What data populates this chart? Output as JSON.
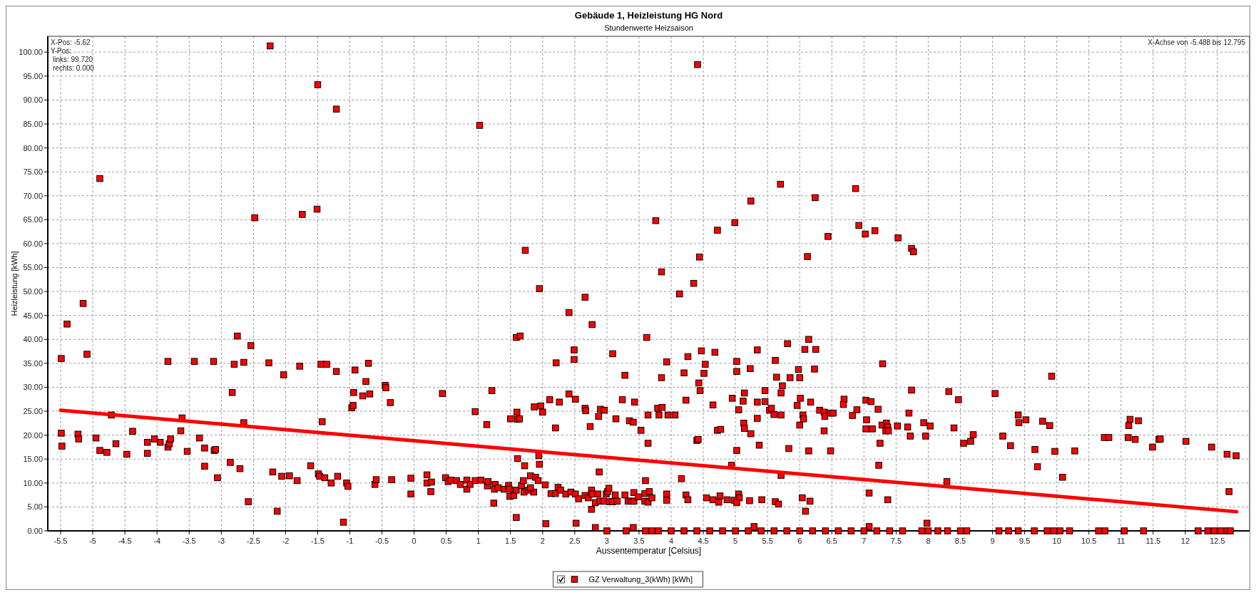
{
  "chart_data": {
    "type": "scatter",
    "title": "Gebäude 1, Heizleistung HG Nord",
    "subtitle": "Stundenwerte Heizsaison",
    "xlabel": "Aussentemperatur [Celsius]",
    "ylabel": "Heizleistung [kWh]",
    "annotations": [
      "X-Pos:  -5.62",
      "Y-Pos:",
      "links: 99.720",
      "rechts: 0.000",
      "X-Achse von -5.488 bis 12.795"
    ],
    "xlim": [
      -5.7,
      13.0
    ],
    "ylim": [
      0,
      103.3
    ],
    "xticks": [
      -5.5,
      -5,
      -4.5,
      -4,
      -3.5,
      -3,
      -2.5,
      -2,
      -1.5,
      -1,
      -0.5,
      0,
      0.5,
      1,
      1.5,
      2,
      2.5,
      3,
      3.5,
      4,
      4.5,
      5,
      5.5,
      6,
      6.5,
      7,
      7.5,
      8,
      8.5,
      9,
      9.5,
      10,
      10.5,
      11,
      11.5,
      12,
      12.5
    ],
    "yticks": [
      {
        "value": 0,
        "label": "0.00"
      },
      {
        "value": 5,
        "label": "5.00"
      },
      {
        "value": 10,
        "label": "10.00"
      },
      {
        "value": 15,
        "label": "15.00"
      },
      {
        "value": 20,
        "label": "20.00"
      },
      {
        "value": 25,
        "label": "25.00"
      },
      {
        "value": 30,
        "label": "30.00"
      },
      {
        "value": 35,
        "label": "35.00"
      },
      {
        "value": 40,
        "label": "40.00"
      },
      {
        "value": 45,
        "label": "45.00"
      },
      {
        "value": 50,
        "label": "50.00"
      },
      {
        "value": 55,
        "label": "55.00"
      },
      {
        "value": 60,
        "label": "60.00"
      },
      {
        "value": 65,
        "label": "65.00"
      },
      {
        "value": 70,
        "label": "70.00"
      },
      {
        "value": 75,
        "label": "75.00"
      },
      {
        "value": 80,
        "label": "80.00"
      },
      {
        "value": 85,
        "label": "85.00"
      },
      {
        "value": 90,
        "label": "90.00"
      },
      {
        "value": 95,
        "label": "95.00"
      },
      {
        "value": 100,
        "label": "100.00"
      }
    ],
    "grid": true,
    "legend": "bottom",
    "series": [
      {
        "name": "GZ Verwaltung_3(kWh) [kWh]",
        "color": "#ff0000",
        "marker": "square",
        "x": [
          -5.4,
          -5.15,
          -5.49,
          -5.09,
          -3.83,
          -3.42,
          -3.12,
          -2.75,
          -2.54,
          -2.8,
          -2.65,
          -2.83,
          -2.26,
          -2.03,
          -1.78,
          -1.45,
          -1.36,
          -1.21,
          -0.92,
          -0.71,
          -0.75,
          -0.94,
          -0.8,
          -0.69,
          -0.45,
          -0.44,
          -0.37,
          -0.97,
          -0.95,
          -1.43,
          -2.65,
          -3.61,
          -4.71,
          -5.49,
          -5.48,
          -5.23,
          -5.22,
          -4.95,
          -4.89,
          -4.78,
          -4.64,
          -4.47,
          -4.38,
          -4.15,
          -4.15,
          -4.04,
          -3.95,
          -3.83,
          -3.81,
          -3.79,
          -3.63,
          -3.53,
          -3.34,
          -3.26,
          -3.26,
          -3.11,
          -3.09,
          -3.06,
          -2.86,
          -2.71,
          -2.58,
          -2.2,
          -2.13,
          -2.06,
          -1.94,
          -1.82,
          -1.61,
          -1.49,
          -1.47,
          -1.39,
          -1.29,
          -1.19,
          -1.1,
          -1.05,
          -1.03,
          -0.61,
          -0.59,
          -0.35,
          -0.05,
          -0.05,
          -2.24,
          -1.5,
          -1.21,
          -4.89,
          -2.48,
          -1.74,
          -1.51,
          4.41,
          1.02,
          5.7,
          6.24,
          5.24,
          3.76,
          4.99,
          4.72,
          6.44,
          1.73,
          6.12,
          4.44,
          3.85,
          4.35,
          1.95,
          4.13,
          2.66,
          2.41,
          6.87,
          6.92,
          7.02,
          7.17,
          7.53,
          7.74,
          7.77,
          2.77,
          1.59,
          1.65,
          3.62,
          6.14,
          5.81,
          2.49,
          3.09,
          4.47,
          4.68,
          5.34,
          6.08,
          6.25,
          2.21,
          2.49,
          3.93,
          4.26,
          4.53,
          5.02,
          5.02,
          5.62,
          5.23,
          6.23,
          5.98,
          3.28,
          4.2,
          3.85,
          4.51,
          5.64,
          5.85,
          6.0,
          4.43,
          4.45,
          5.73,
          5.71,
          0.44,
          1.21,
          2.41,
          2.51,
          2.11,
          2.26,
          3.24,
          3.43,
          4.23,
          4.65,
          4.95,
          5.14,
          5.12,
          5.34,
          5.46,
          5.46,
          6.01,
          5.96,
          6.17,
          0.95,
          1.6,
          1.87,
          1.97,
          2.0,
          2.66,
          2.67,
          2.9,
          2.96,
          2.87,
          3.14,
          3.35,
          3.41,
          3.79,
          3.86,
          3.64,
          3.81,
          3.95,
          4.06,
          5.05,
          5.53,
          5.56,
          5.6,
          5.71,
          6.05,
          6.06,
          6.31,
          6.38,
          6.39,
          6.48,
          5.34,
          6.0,
          5.13,
          5.14,
          5.24,
          6.38,
          4.72,
          4.77,
          1.13,
          1.5,
          1.61,
          1.64,
          2.2,
          2.74,
          3.53,
          4.4,
          4.42,
          3.64,
          5.37,
          5.02,
          5.83,
          6.14,
          6.48,
          1.61,
          1.72,
          1.94,
          1.95,
          2.88,
          4.94,
          5.71,
          3.6,
          4.16,
          0.2,
          0.2,
          0.27,
          0.26,
          0.49,
          0.53,
          0.57,
          0.66,
          0.72,
          0.82,
          0.82,
          0.87,
          0.95,
          1.04,
          1.14,
          1.15,
          1.24,
          1.26,
          1.25,
          1.31,
          1.4,
          1.47,
          1.49,
          1.55,
          1.48,
          1.59,
          1.59,
          1.67,
          1.7,
          1.71,
          1.78,
          1.81,
          1.86,
          1.81,
          1.89,
          1.93,
          2.04,
          2.05,
          2.13,
          2.2,
          2.24,
          2.28,
          2.36,
          2.44,
          2.51,
          2.52,
          2.56,
          2.66,
          2.71,
          2.76,
          2.77,
          2.76,
          2.82,
          2.86,
          2.82,
          2.89,
          2.95,
          2.99,
          3.01,
          3.03,
          3.04,
          3.09,
          3.13,
          3.16,
          3.28,
          3.33,
          3.38,
          3.42,
          3.42,
          3.41,
          3.49,
          3.59,
          3.59,
          3.64,
          3.66,
          3.7,
          3.93,
          3.93,
          4.23,
          4.26,
          4.55,
          4.65,
          4.76,
          4.74,
          4.87,
          4.98,
          5.05,
          5.06,
          5.02,
          5.22,
          5.29,
          5.41,
          5.62,
          5.67,
          6.04,
          6.16,
          6.09,
          7.29,
          9.92,
          7.74,
          8.32,
          9.04,
          8.47,
          6.69,
          6.68,
          7.03,
          7.11,
          7.22,
          6.89,
          6.52,
          6.82,
          7.7,
          7.04,
          7.03,
          7.13,
          7.28,
          7.35,
          7.37,
          7.34,
          7.38,
          7.52,
          7.25,
          7.23,
          7.08,
          7.37,
          7.68,
          7.72,
          7.93,
          8.03,
          7.96,
          7.98,
          8.29,
          8.4,
          8.55,
          8.66,
          8.7,
          9.16,
          9.28,
          9.4,
          9.41,
          9.52,
          9.66,
          9.7,
          9.78,
          9.89,
          9.97,
          10.09,
          10.28,
          10.74,
          10.81,
          11.12,
          11.14,
          11.27,
          11.11,
          11.22,
          11.49,
          11.59,
          11.61,
          12.01,
          12.41,
          12.65,
          12.79,
          12.68,
          7.08,
          3.0,
          3.3,
          3.6,
          3.7,
          3.8,
          4.0,
          4.2,
          4.4,
          4.6,
          4.8,
          5.0,
          5.2,
          5.4,
          5.6,
          5.8,
          6.0,
          6.2,
          6.4,
          6.6,
          6.8,
          7.0,
          7.2,
          7.4,
          7.6,
          7.9,
          8.0,
          8.15,
          8.3,
          8.5,
          8.6,
          9.1,
          9.25,
          9.4,
          9.65,
          9.85,
          9.95,
          10.05,
          10.2,
          10.65,
          10.75,
          11.05,
          11.35,
          12.2,
          12.35,
          12.45,
          12.55,
          12.65,
          12.7
        ],
        "values": [
          43.2,
          47.5,
          36.0,
          36.9,
          35.4,
          35.4,
          35.4,
          40.7,
          38.7,
          34.8,
          35.2,
          28.9,
          35.1,
          32.6,
          34.4,
          34.8,
          34.8,
          33.3,
          33.6,
          35.0,
          31.2,
          28.9,
          28.2,
          28.6,
          30.4,
          29.9,
          26.8,
          25.7,
          26.2,
          22.8,
          22.6,
          23.6,
          24.2,
          20.4,
          17.7,
          20.2,
          19.2,
          19.4,
          16.8,
          16.4,
          18.2,
          16.0,
          20.8,
          18.5,
          16.2,
          19.2,
          18.5,
          17.5,
          18.2,
          19.2,
          20.9,
          16.6,
          19.4,
          17.3,
          13.5,
          16.8,
          17.0,
          11.1,
          14.3,
          13.0,
          6.1,
          12.3,
          4.1,
          11.4,
          11.5,
          10.5,
          13.6,
          11.9,
          11.4,
          11.1,
          10.0,
          11.4,
          1.8,
          10.0,
          9.3,
          9.7,
          10.7,
          10.7,
          11.0,
          7.7,
          101.3,
          93.2,
          88.1,
          73.6,
          65.4,
          66.1,
          67.2,
          97.4,
          84.7,
          72.4,
          69.6,
          68.9,
          64.8,
          64.4,
          62.8,
          61.5,
          58.6,
          57.3,
          57.2,
          54.1,
          51.7,
          50.6,
          49.5,
          48.8,
          45.6,
          71.5,
          63.8,
          62.0,
          62.7,
          61.2,
          59.0,
          58.3,
          43.1,
          40.4,
          40.7,
          40.4,
          40.0,
          39.1,
          37.8,
          37.0,
          37.6,
          37.3,
          37.8,
          37.9,
          37.9,
          35.1,
          35.8,
          35.3,
          36.4,
          34.8,
          35.4,
          33.3,
          35.6,
          33.9,
          33.8,
          33.7,
          32.5,
          33.0,
          32.0,
          32.9,
          32.1,
          32.0,
          32.0,
          30.9,
          29.3,
          30.3,
          28.8,
          28.7,
          29.3,
          28.6,
          27.5,
          27.4,
          26.9,
          27.4,
          26.9,
          27.3,
          26.3,
          27.7,
          28.8,
          27.1,
          26.9,
          29.3,
          27.0,
          27.7,
          26.2,
          26.9,
          24.9,
          24.8,
          25.9,
          26.1,
          24.8,
          25.6,
          25.1,
          25.4,
          25.2,
          23.9,
          23.4,
          23.0,
          22.7,
          25.6,
          25.8,
          24.2,
          24.2,
          24.2,
          24.2,
          25.3,
          25.2,
          25.6,
          24.3,
          24.2,
          24.2,
          23.4,
          25.2,
          24.8,
          23.9,
          24.6,
          23.5,
          22.1,
          22.5,
          21.4,
          20.3,
          20.9,
          21.0,
          21.2,
          22.2,
          23.4,
          23.3,
          23.4,
          21.5,
          21.8,
          21.0,
          18.9,
          19.1,
          18.3,
          17.9,
          16.8,
          17.2,
          16.7,
          16.7,
          15.1,
          13.6,
          15.7,
          13.9,
          12.3,
          13.7,
          11.6,
          10.5,
          10.9,
          11.7,
          10.0,
          10.2,
          8.2,
          11.1,
          10.3,
          10.6,
          10.5,
          9.7,
          10.6,
          8.7,
          9.7,
          10.5,
          10.6,
          9.4,
          10.3,
          5.8,
          9.7,
          8.7,
          9.0,
          8.7,
          9.5,
          7.2,
          7.4,
          8.7,
          8.5,
          2.8,
          9.5,
          10.5,
          8.1,
          8.5,
          11.5,
          8.1,
          9.0,
          11.2,
          10.5,
          9.6,
          1.5,
          7.8,
          7.8,
          9.1,
          8.5,
          7.7,
          8.1,
          7.7,
          1.6,
          6.7,
          7.4,
          6.9,
          8.5,
          7.7,
          4.5,
          5.9,
          7.7,
          0.7,
          6.2,
          6.2,
          7.7,
          8.2,
          8.9,
          6.1,
          6.1,
          7.5,
          6.2,
          7.5,
          6.2,
          6.2,
          8.0,
          6.2,
          0.7,
          7.1,
          7.8,
          6.2,
          6.0,
          8.2,
          6.9,
          7.7,
          6.4,
          7.5,
          6.5,
          6.9,
          6.5,
          7.3,
          6.0,
          6.5,
          6.4,
          7.7,
          6.9,
          5.9,
          6.3,
          0.9,
          6.5,
          6.1,
          5.6,
          6.9,
          6.2,
          4.1,
          34.9,
          32.3,
          29.4,
          29.1,
          28.7,
          27.4,
          27.5,
          26.4,
          27.3,
          27.0,
          25.4,
          25.3,
          24.6,
          24.1,
          24.6,
          23.2,
          21.3,
          21.3,
          22.1,
          22.5,
          21.7,
          20.9,
          20.9,
          21.9,
          18.3,
          13.7,
          7.9,
          6.5,
          21.7,
          19.8,
          22.6,
          21.9,
          19.8,
          1.6,
          10.3,
          21.5,
          18.3,
          18.7,
          20.1,
          19.8,
          17.8,
          24.2,
          22.6,
          23.2,
          17.0,
          13.4,
          22.9,
          22.0,
          16.6,
          11.2,
          16.7,
          19.5,
          19.5,
          22.0,
          23.3,
          23.0,
          19.5,
          19.1,
          17.5,
          19.1,
          19.2,
          18.7,
          17.5,
          16.0,
          15.7,
          8.2,
          0.9,
          0,
          0,
          0,
          0,
          0,
          0,
          0,
          0,
          0,
          0,
          0,
          0,
          0,
          0,
          0,
          0,
          0,
          0,
          0,
          0,
          0,
          0,
          0,
          0,
          0,
          0,
          0,
          0,
          0,
          0,
          0,
          0,
          0,
          0,
          0,
          0,
          0,
          0,
          0,
          0,
          0,
          0,
          0,
          0,
          0,
          0,
          0,
          0
        ]
      },
      {
        "type": "line",
        "color": "#ff0000",
        "x": [
          -5.5,
          12.8
        ],
        "values": [
          25.2,
          4.0
        ]
      }
    ]
  }
}
